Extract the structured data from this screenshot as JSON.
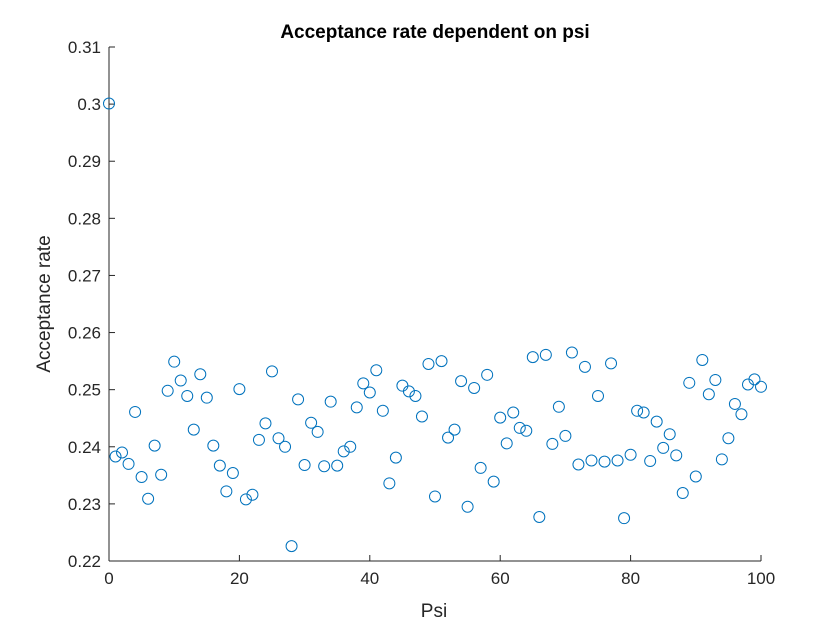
{
  "chart_data": {
    "type": "scatter",
    "title": "Acceptance rate dependent on psi",
    "xlabel": "Psi",
    "ylabel": "Acceptance rate",
    "xlim": [
      0,
      100
    ],
    "ylim": [
      0.22,
      0.31
    ],
    "x_ticks": [
      0,
      20,
      40,
      60,
      80,
      100
    ],
    "y_ticks": [
      0.22,
      0.23,
      0.24,
      0.25,
      0.26,
      0.27,
      0.28,
      0.29,
      0.3,
      0.31
    ],
    "x_tick_labels": [
      "0",
      "20",
      "40",
      "60",
      "80",
      "100"
    ],
    "y_tick_labels": [
      "0.22",
      "0.23",
      "0.24",
      "0.25",
      "0.26",
      "0.27",
      "0.28",
      "0.29",
      "0.3",
      "0.31"
    ],
    "grid": false,
    "marker": "open-circle",
    "color": "#0072BD",
    "x": [
      0,
      1,
      2,
      3,
      4,
      5,
      6,
      7,
      8,
      9,
      10,
      11,
      12,
      13,
      14,
      15,
      16,
      17,
      18,
      19,
      20,
      21,
      22,
      23,
      24,
      25,
      26,
      27,
      28,
      29,
      30,
      31,
      32,
      33,
      34,
      35,
      36,
      37,
      38,
      39,
      40,
      41,
      42,
      43,
      44,
      45,
      46,
      47,
      48,
      49,
      50,
      51,
      52,
      53,
      54,
      55,
      56,
      57,
      58,
      59,
      60,
      61,
      62,
      63,
      64,
      65,
      66,
      67,
      68,
      69,
      70,
      71,
      72,
      73,
      74,
      75,
      76,
      77,
      78,
      79,
      80,
      81,
      82,
      83,
      84,
      85,
      86,
      87,
      88,
      89,
      90,
      91,
      92,
      93,
      94,
      95,
      96,
      97,
      98,
      99,
      100
    ],
    "y": [
      0.3001,
      0.2383,
      0.239,
      0.237,
      0.2461,
      0.2347,
      0.2309,
      0.2402,
      0.2351,
      0.2498,
      0.2549,
      0.2516,
      0.2489,
      0.243,
      0.2527,
      0.2486,
      0.2402,
      0.2367,
      0.2322,
      0.2354,
      0.2501,
      0.2308,
      0.2316,
      0.2412,
      0.2441,
      0.2532,
      0.2415,
      0.24,
      0.2226,
      0.2483,
      0.2368,
      0.2442,
      0.2426,
      0.2366,
      0.2479,
      0.2367,
      0.2392,
      0.24,
      0.2469,
      0.2511,
      0.2495,
      0.2534,
      0.2463,
      0.2336,
      0.2381,
      0.2507,
      0.2497,
      0.2489,
      0.2453,
      0.2545,
      0.2313,
      0.255,
      0.2416,
      0.243,
      0.2515,
      0.2295,
      0.2503,
      0.2363,
      0.2526,
      0.2339,
      0.2451,
      0.2406,
      0.246,
      0.2433,
      0.2428,
      0.2557,
      0.2277,
      0.2561,
      0.2405,
      0.247,
      0.2419,
      0.2565,
      0.2369,
      0.254,
      0.2376,
      0.2489,
      0.2374,
      0.2546,
      0.2376,
      0.2275,
      0.2386,
      0.2463,
      0.246,
      0.2375,
      0.2444,
      0.2398,
      0.2422,
      0.2385,
      0.2319,
      0.2512,
      0.2348,
      0.2552,
      0.2492,
      0.2517,
      0.2378,
      0.2415,
      0.2475,
      0.2457,
      0.2509,
      0.2518,
      0.2505
    ]
  }
}
